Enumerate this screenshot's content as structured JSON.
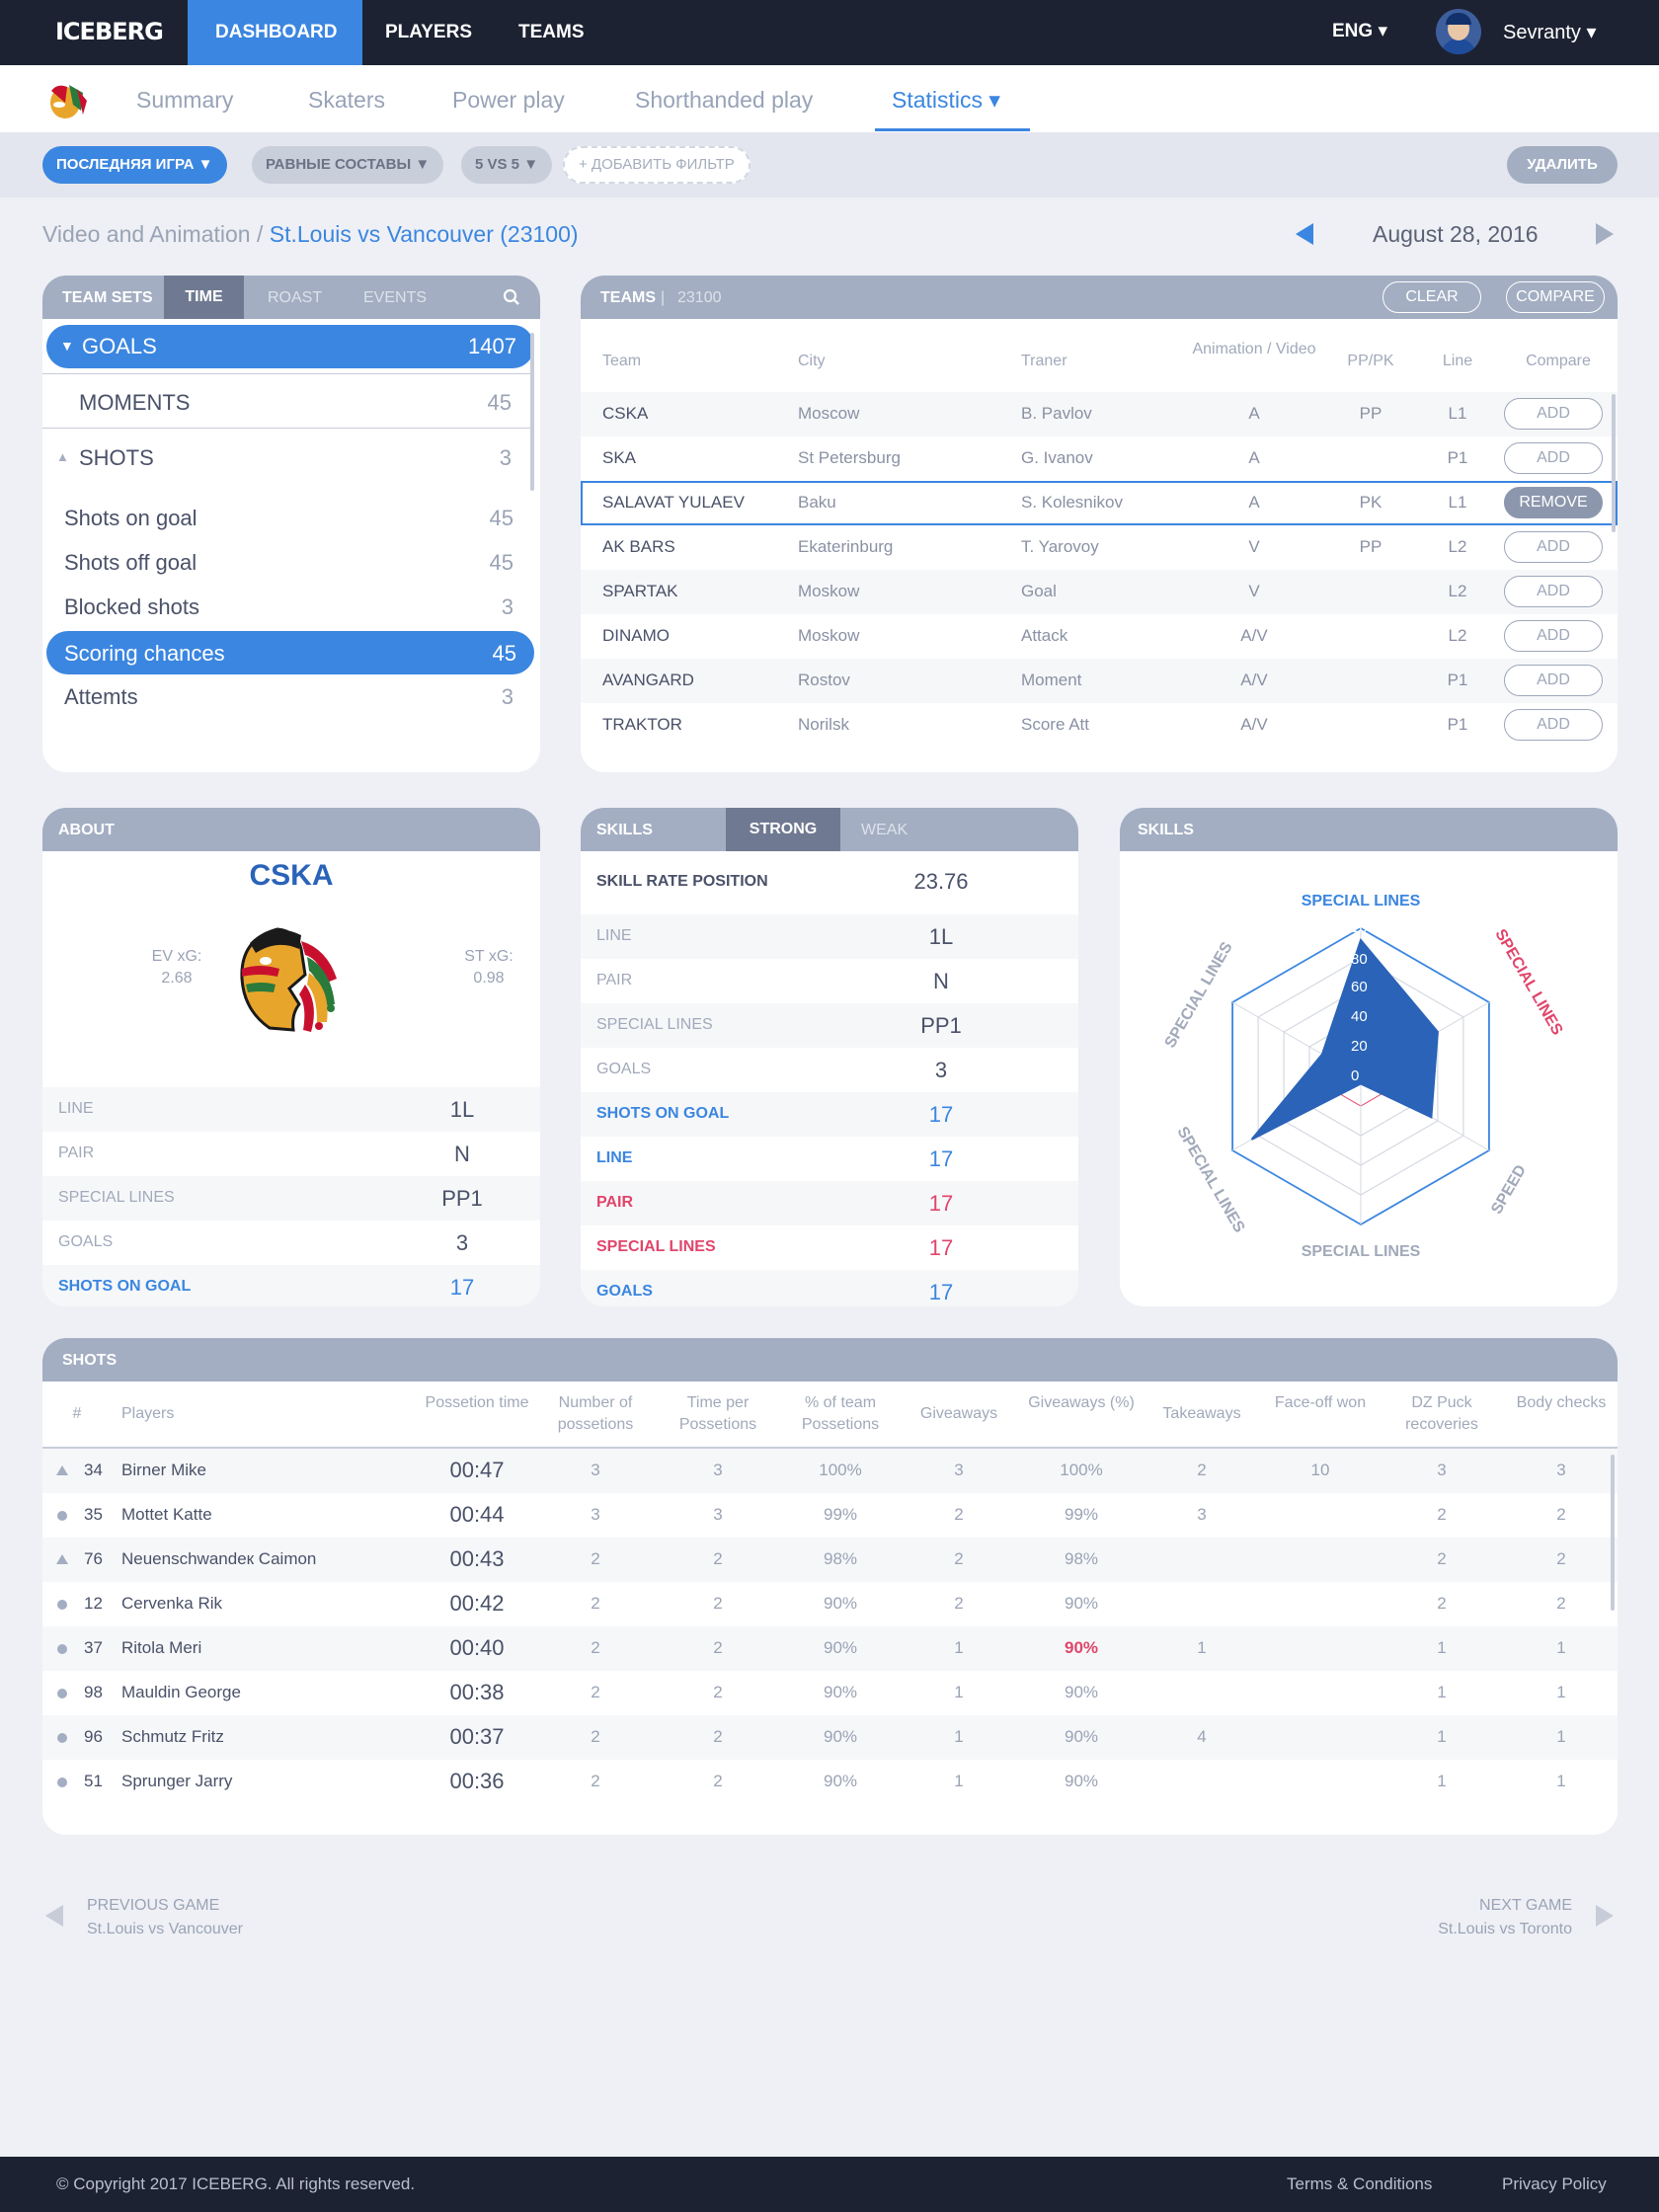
{
  "header": {
    "logo": "ICEBERG",
    "nav": [
      "DASHBOARD",
      "PLAYERS",
      "TEAMS"
    ],
    "lang": "ENG ▾",
    "user": "Sevranty ▾"
  },
  "subnav": {
    "tabs": [
      "Summary",
      "Skaters",
      "Power play",
      "Shorthanded play",
      "Statistics ▾"
    ]
  },
  "filters": {
    "items": [
      "ПОСЛЕДНЯЯ ИГРА ▼",
      "РАВНЫЕ СОСТАВЫ ▼",
      "5 VS 5 ▼",
      "+ ДОБАВИТЬ ФИЛЬТР"
    ],
    "delete": "УДАЛИТЬ"
  },
  "breadcrumb": {
    "root": "Video and Animation / ",
    "current": "St.Louis vs Vancouver (23100)"
  },
  "date": "August 28, 2016",
  "sets": {
    "tabs": [
      "TEAM SETS",
      "TIME",
      "ROAST",
      "EVENTS"
    ],
    "goals": {
      "label": "GOALS",
      "count": "1407"
    },
    "moments": {
      "label": "MOMENTS",
      "count": "45"
    },
    "shots": {
      "label": "SHOTS",
      "count": "3"
    },
    "items": [
      {
        "label": "Shots on goal",
        "count": "45"
      },
      {
        "label": "Shots off goal",
        "count": "45"
      },
      {
        "label": "Blocked shots",
        "count": "3"
      },
      {
        "label": "Scoring chances",
        "count": "45"
      },
      {
        "label": "Attemts",
        "count": "3"
      }
    ]
  },
  "teams": {
    "title": "TEAMS",
    "id": "23100",
    "clear": "CLEAR",
    "compare": "COMPARE",
    "headers": [
      "Team",
      "City",
      "Traner",
      "Animation / Video",
      "PP/PK",
      "Line",
      "Compare"
    ],
    "rows": [
      {
        "team": "CSKA",
        "city": "Moscow",
        "trainer": "B. Pavlov",
        "av": "A",
        "pp": "PP",
        "line": "L1",
        "btn": "ADD"
      },
      {
        "team": "SKA",
        "city": "St Petersburg",
        "trainer": "G. Ivanov",
        "av": "A",
        "pp": "",
        "line": "P1",
        "btn": "ADD"
      },
      {
        "team": "SALAVAT YULAEV",
        "city": "Baku",
        "trainer": "S. Kolesnikov",
        "av": "A",
        "pp": "PK",
        "line": "L1",
        "btn": "REMOVE"
      },
      {
        "team": "AK BARS",
        "city": "Ekaterinburg",
        "trainer": "T. Yarovoy",
        "av": "V",
        "pp": "PP",
        "line": "L2",
        "btn": "ADD"
      },
      {
        "team": "SPARTAK",
        "city": "Moskow",
        "trainer": "Goal",
        "av": "V",
        "pp": "",
        "line": "L2",
        "btn": "ADD"
      },
      {
        "team": "DINAMO",
        "city": "Moskow",
        "trainer": "Attack",
        "av": "A/V",
        "pp": "",
        "line": "L2",
        "btn": "ADD"
      },
      {
        "team": "AVANGARD",
        "city": "Rostov",
        "trainer": "Moment",
        "av": "A/V",
        "pp": "",
        "line": "P1",
        "btn": "ADD"
      },
      {
        "team": "TRAKTOR",
        "city": "Norilsk",
        "trainer": "Score Att",
        "av": "A/V",
        "pp": "",
        "line": "P1",
        "btn": "ADD"
      }
    ]
  },
  "about": {
    "title": "ABOUT",
    "team": "CSKA",
    "ev_label": "EV xG:",
    "ev_value": "2.68",
    "st_label": "ST xG:",
    "st_value": "0.98",
    "rows": [
      {
        "label": "LINE",
        "value": "1L"
      },
      {
        "label": "PAIR",
        "value": "N"
      },
      {
        "label": "SPECIAL LINES",
        "value": "PP1"
      },
      {
        "label": "GOALS",
        "value": "3"
      },
      {
        "label": "SHOTS ON GOAL",
        "value": "17"
      }
    ]
  },
  "skills": {
    "tabs": [
      "SKILLS",
      "STRONG",
      "WEAK"
    ],
    "rate_label": "SKILL RATE POSITION",
    "rate_value": "23.76",
    "rows": [
      {
        "label": "LINE",
        "value": "1L"
      },
      {
        "label": "PAIR",
        "value": "N"
      },
      {
        "label": "SPECIAL LINES",
        "value": "PP1"
      },
      {
        "label": "GOALS",
        "value": "3"
      },
      {
        "label": "SHOTS ON GOAL",
        "value": "17"
      },
      {
        "label": "LINE",
        "value": "17"
      },
      {
        "label": "PAIR",
        "value": "17"
      },
      {
        "label": "SPECIAL LINES",
        "value": "17"
      },
      {
        "label": "GOALS",
        "value": "17"
      }
    ]
  },
  "radar": {
    "title": "SKILLS",
    "axes": [
      "SPECIAL LINES",
      "SPECIAL LINES",
      "SPEED",
      "SPECIAL LINES",
      "SPECIAL LINES",
      "SPECIAL LINES"
    ],
    "ticks": [
      "100",
      "80",
      "60",
      "40",
      "20",
      "0"
    ],
    "values": [
      92,
      60,
      55,
      5,
      85,
      30
    ],
    "colors": {
      "accent": "#3b86e0",
      "fill": "#2a63b8",
      "red": "#e0456b"
    }
  },
  "shots": {
    "title": "SHOTS",
    "headers": [
      "#",
      "Players",
      "Possetion time",
      "Number of possetions",
      "Time per Possetions",
      "% of team Possetions",
      "Giveaways",
      "Giveaways (%)",
      "Takeaways",
      "Face-off won",
      "DZ Puck recoveries",
      "Body checks"
    ],
    "rows": [
      {
        "n": "34",
        "name": "Birner Mike",
        "time": "00:47",
        "c": [
          "3",
          "3",
          "100%",
          "3",
          "100%",
          "2",
          "10",
          "3",
          "3"
        ]
      },
      {
        "n": "35",
        "name": "Mottet Katte",
        "time": "00:44",
        "c": [
          "3",
          "3",
          "99%",
          "2",
          "99%",
          "3",
          "",
          "2",
          "2"
        ]
      },
      {
        "n": "76",
        "name": "Neuenschwandeк Caimon",
        "time": "00:43",
        "c": [
          "2",
          "2",
          "98%",
          "2",
          "98%",
          "",
          "",
          "2",
          "2"
        ]
      },
      {
        "n": "12",
        "name": "Cervenka Rik",
        "time": "00:42",
        "c": [
          "2",
          "2",
          "90%",
          "2",
          "90%",
          "",
          "",
          "2",
          "2"
        ]
      },
      {
        "n": "37",
        "name": "Ritola Meri",
        "time": "00:40",
        "c": [
          "2",
          "2",
          "90%",
          "1",
          "90%",
          "1",
          "",
          "1",
          "1"
        ]
      },
      {
        "n": "98",
        "name": "Mauldin George",
        "time": "00:38",
        "c": [
          "2",
          "2",
          "90%",
          "1",
          "90%",
          "",
          "",
          "1",
          "1"
        ]
      },
      {
        "n": "96",
        "name": "Schmutz Fritz",
        "time": "00:37",
        "c": [
          "2",
          "2",
          "90%",
          "1",
          "90%",
          "4",
          "",
          "1",
          "1"
        ]
      },
      {
        "n": "51",
        "name": "Sprunger Jarry",
        "time": "00:36",
        "c": [
          "2",
          "2",
          "90%",
          "1",
          "90%",
          "",
          "",
          "1",
          "1"
        ]
      }
    ]
  },
  "pager": {
    "prev_label": "PREVIOUS GAME",
    "prev_game": "St.Louis vs Vancouver",
    "next_label": "NEXT GAME",
    "next_game": "St.Louis vs Toronto"
  },
  "footer": {
    "copyright": "© Copyright 2017 ICEBERG. All rights reserved.",
    "terms": "Terms & Conditions",
    "privacy": "Privacy Policy"
  }
}
